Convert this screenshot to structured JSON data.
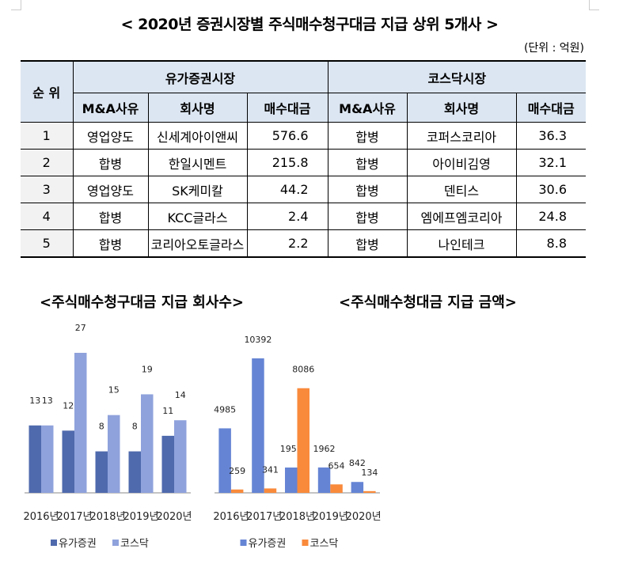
{
  "title": "< 2020년 증권시장별 주식매수청구대금 지급 상위 5개사 >",
  "unit": "(단위 : 억원)",
  "table": {
    "rank_header": "순 위",
    "groups": [
      "유가증권시장",
      "코스닥시장"
    ],
    "subheaders": [
      "M&A사유",
      "회사명",
      "매수대금",
      "M&A사유",
      "회사명",
      "매수대금"
    ],
    "rows": [
      [
        "1",
        "영업양도",
        "신세계아이앤씨",
        "576.6",
        "합병",
        "코퍼스코리아",
        "36.3"
      ],
      [
        "2",
        "합병",
        "한일시멘트",
        "215.8",
        "합병",
        "아이비김영",
        "32.1"
      ],
      [
        "3",
        "영업양도",
        "SK케미칼",
        "44.2",
        "합병",
        "덴티스",
        "30.6"
      ],
      [
        "4",
        "합병",
        "KCC글라스",
        "2.4",
        "합병",
        "엠에프엠코리아",
        "24.8"
      ],
      [
        "5",
        "합병",
        "코리아오토글라스",
        "2.2",
        "합병",
        "나인테크",
        "8.8"
      ]
    ]
  },
  "chart_data": [
    {
      "type": "bar",
      "title": "<주식매수청구대금 지급 회사수>",
      "categories": [
        "2016년",
        "2017년",
        "2018년",
        "2019년",
        "2020년"
      ],
      "series": [
        {
          "name": "유가증권",
          "values": [
            13,
            12,
            8,
            8,
            11
          ],
          "color": "#4f6aad"
        },
        {
          "name": "코스닥",
          "values": [
            13,
            27,
            15,
            19,
            14
          ],
          "color": "#8fa2dc"
        }
      ],
      "ylim": [
        0,
        27
      ],
      "legend": "bottom",
      "grid": false
    },
    {
      "type": "bar",
      "title": "<주식매수청대금 지급 금액>",
      "categories": [
        "2016년",
        "2017년",
        "2018년",
        "2019년",
        "2020년"
      ],
      "series": [
        {
          "name": "유가증권",
          "values": [
            4985,
            10392,
            1957,
            1962,
            842
          ],
          "color": "#6584d4"
        },
        {
          "name": "코스닥",
          "values": [
            259,
            341,
            8086,
            654,
            134
          ],
          "color": "#f98a3b"
        }
      ],
      "ylim": [
        0,
        10392
      ],
      "legend": "bottom",
      "grid": false
    }
  ]
}
